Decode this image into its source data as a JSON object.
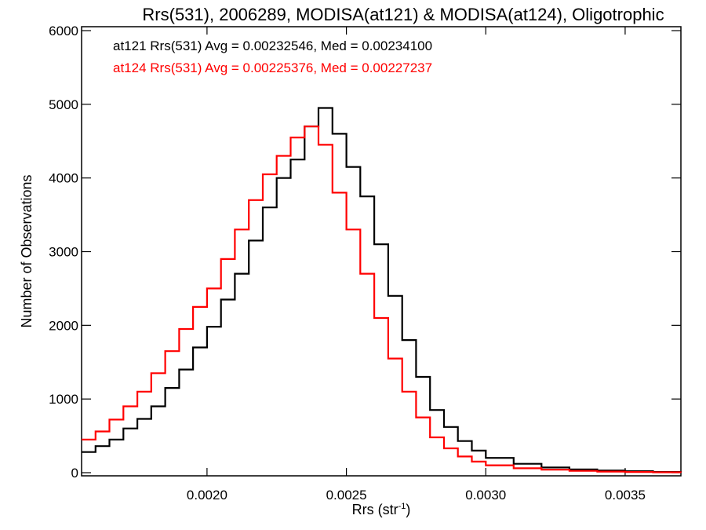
{
  "chart_data": {
    "type": "line",
    "step": true,
    "title": "Rrs(531), 2006289, MODISA(at121) & MODISA(at124), Oligotrophic",
    "xlabel": "Rrs (str",
    "xlabel_sup": "-1",
    "xlabel_close": ")",
    "ylabel": "Number of Observations",
    "xlim": [
      0.00155,
      0.0037
    ],
    "ylim": [
      0,
      6000
    ],
    "grid": false,
    "legend_position": "top-left",
    "x_ticks": [
      {
        "value": 0.002,
        "label": "0.0020"
      },
      {
        "value": 0.0025,
        "label": "0.0025"
      },
      {
        "value": 0.003,
        "label": "0.0030"
      },
      {
        "value": 0.0035,
        "label": "0.0035"
      }
    ],
    "y_ticks": [
      {
        "value": 0,
        "label": "0"
      },
      {
        "value": 1000,
        "label": "1000"
      },
      {
        "value": 2000,
        "label": "2000"
      },
      {
        "value": 3000,
        "label": "3000"
      },
      {
        "value": 4000,
        "label": "4000"
      },
      {
        "value": 5000,
        "label": "5000"
      },
      {
        "value": 6000,
        "label": "6000"
      }
    ],
    "series": [
      {
        "legend": "at121 Rrs(531) Avg = 0.00232546, Med = 0.00234100",
        "color": "#000000",
        "points": [
          [
            0.00155,
            280
          ],
          [
            0.0016,
            360
          ],
          [
            0.00165,
            450
          ],
          [
            0.0017,
            600
          ],
          [
            0.00175,
            730
          ],
          [
            0.0018,
            900
          ],
          [
            0.00185,
            1150
          ],
          [
            0.0019,
            1400
          ],
          [
            0.00195,
            1700
          ],
          [
            0.002,
            1980
          ],
          [
            0.00205,
            2350
          ],
          [
            0.0021,
            2700
          ],
          [
            0.00215,
            3150
          ],
          [
            0.0022,
            3600
          ],
          [
            0.00225,
            4000
          ],
          [
            0.0023,
            4250
          ],
          [
            0.00235,
            4700
          ],
          [
            0.0024,
            4950
          ],
          [
            0.00245,
            4600
          ],
          [
            0.0025,
            4150
          ],
          [
            0.00255,
            3750
          ],
          [
            0.0026,
            3100
          ],
          [
            0.00265,
            2400
          ],
          [
            0.0027,
            1800
          ],
          [
            0.00275,
            1300
          ],
          [
            0.0028,
            850
          ],
          [
            0.00285,
            620
          ],
          [
            0.0029,
            430
          ],
          [
            0.00295,
            300
          ],
          [
            0.003,
            200
          ],
          [
            0.0031,
            120
          ],
          [
            0.0032,
            70
          ],
          [
            0.0033,
            45
          ],
          [
            0.0034,
            30
          ],
          [
            0.0035,
            20
          ],
          [
            0.0036,
            10
          ],
          [
            0.0037,
            5
          ]
        ]
      },
      {
        "legend": "at124 Rrs(531) Avg = 0.00225376, Med = 0.00227237",
        "color": "#ff0000",
        "points": [
          [
            0.00155,
            450
          ],
          [
            0.0016,
            560
          ],
          [
            0.00165,
            720
          ],
          [
            0.0017,
            900
          ],
          [
            0.00175,
            1100
          ],
          [
            0.0018,
            1350
          ],
          [
            0.00185,
            1650
          ],
          [
            0.0019,
            1950
          ],
          [
            0.00195,
            2250
          ],
          [
            0.002,
            2500
          ],
          [
            0.00205,
            2900
          ],
          [
            0.0021,
            3300
          ],
          [
            0.00215,
            3700
          ],
          [
            0.0022,
            4050
          ],
          [
            0.00225,
            4300
          ],
          [
            0.0023,
            4550
          ],
          [
            0.00235,
            4700
          ],
          [
            0.0024,
            4450
          ],
          [
            0.00245,
            3800
          ],
          [
            0.0025,
            3300
          ],
          [
            0.00255,
            2700
          ],
          [
            0.0026,
            2100
          ],
          [
            0.00265,
            1550
          ],
          [
            0.0027,
            1100
          ],
          [
            0.00275,
            750
          ],
          [
            0.0028,
            480
          ],
          [
            0.00285,
            330
          ],
          [
            0.0029,
            220
          ],
          [
            0.00295,
            150
          ],
          [
            0.003,
            100
          ],
          [
            0.0031,
            60
          ],
          [
            0.0032,
            40
          ],
          [
            0.0033,
            25
          ],
          [
            0.0034,
            15
          ],
          [
            0.0035,
            10
          ],
          [
            0.0036,
            5
          ],
          [
            0.0037,
            3
          ]
        ]
      }
    ]
  }
}
